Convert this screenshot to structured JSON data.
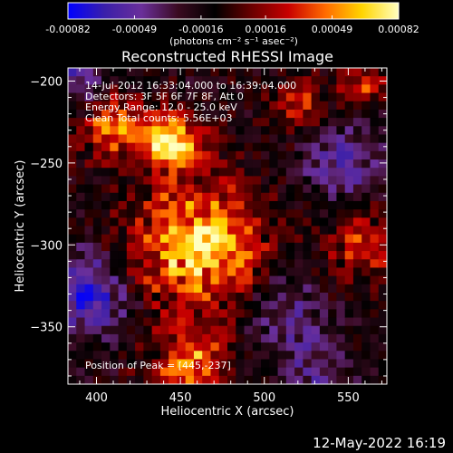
{
  "colorbar": {
    "tick_labels": [
      "-0.00082",
      "-0.00049",
      "-0.00016",
      "0.00016",
      "0.00049",
      "0.00082"
    ],
    "tick_values": [
      -0.00082,
      -0.00049,
      -0.00016,
      0.00016,
      0.00049,
      0.00082
    ],
    "unit_label": "(photons cm⁻² s⁻¹ asec⁻²)",
    "range": [
      -0.00082,
      0.00082
    ],
    "colors": [
      "#0000ff",
      "#3a1faa",
      "#6a2f9a",
      "#3a0a20",
      "#000000",
      "#6a0000",
      "#c80000",
      "#ff6a00",
      "#ffd400",
      "#ffffc0"
    ]
  },
  "chart_data": {
    "type": "heatmap",
    "title": "Reconstructed RHESSI Image",
    "xlabel": "Heliocentric X (arcsec)",
    "ylabel": "Heliocentric Y (arcsec)",
    "xlim": [
      383,
      573
    ],
    "ylim": [
      -385,
      -192
    ],
    "xticks": [
      400,
      450,
      500,
      550
    ],
    "yticks": [
      -200,
      -250,
      -300,
      -350
    ],
    "xtick_labels": [
      "400",
      "450",
      "500",
      "550"
    ],
    "ytick_labels": [
      "−200",
      "−250",
      "−300",
      "−350"
    ],
    "annotations": [
      "14-Jul-2012 16:33:04.000 to 16:39:04.000",
      "Detectors: 3F 5F 6F 7F 8F, Att 0",
      "Energy Range: 12.0 - 25.0 keV",
      "Clean     Total counts: 5.56E+03"
    ],
    "peak_label": "Position of Peak = [445,-237]",
    "peak": [
      445,
      -237
    ]
  },
  "footer": {
    "date": "12-May-2022 16:19"
  }
}
